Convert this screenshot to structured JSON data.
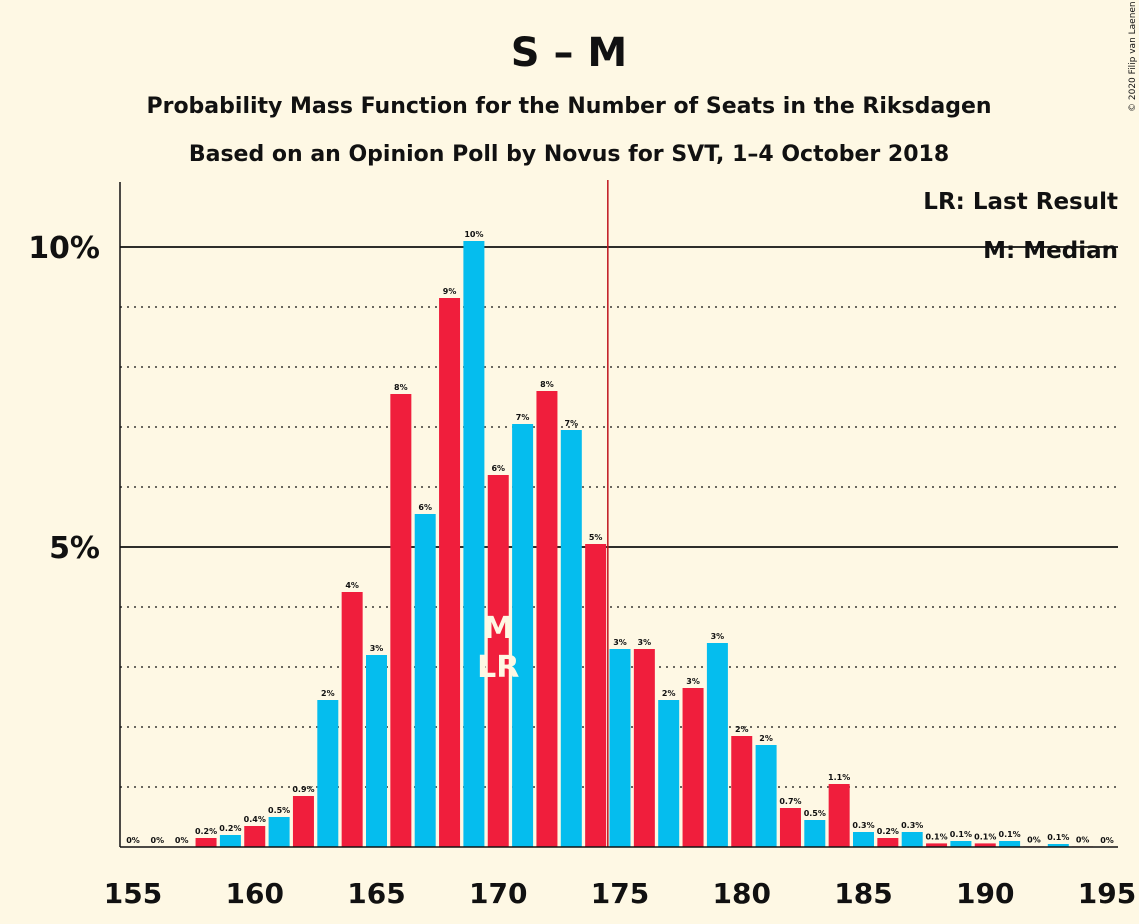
{
  "chart_data": {
    "type": "bar",
    "title": "S – M",
    "subtitle": "Probability Mass Function for the Number of Seats in the Riksdagen",
    "subtitle2": "Based on an Opinion Poll by Novus for SVT, 1–4 October 2018",
    "copyright": "© 2020 Filip van Laenen",
    "legend": {
      "lr": "LR: Last Result",
      "m": "M: Median",
      "placement": "top-right"
    },
    "x": [
      155,
      156,
      157,
      158,
      159,
      160,
      161,
      162,
      163,
      164,
      165,
      166,
      167,
      168,
      169,
      170,
      171,
      172,
      173,
      174,
      175,
      176,
      177,
      178,
      179,
      180,
      181,
      182,
      183,
      184,
      185,
      186,
      187,
      188,
      189,
      190,
      191,
      192,
      193,
      194,
      195
    ],
    "values": [
      0,
      0,
      0,
      0.15,
      0.2,
      0.35,
      0.5,
      0.85,
      2.45,
      4.25,
      3.2,
      7.55,
      5.55,
      9.15,
      10.1,
      6.2,
      7.05,
      7.6,
      6.95,
      5.05,
      3.3,
      3.3,
      2.45,
      2.65,
      3.4,
      1.85,
      1.7,
      0.65,
      0.45,
      1.05,
      0.25,
      0.15,
      0.25,
      0.06,
      0.1,
      0.06,
      0.1,
      0.01,
      0.05,
      0.01,
      0
    ],
    "labels": [
      "0%",
      "0%",
      "0%",
      "0.2%",
      "0.2%",
      "0.4%",
      "0.5%",
      "0.9%",
      "2%",
      "4%",
      "3%",
      "8%",
      "6%",
      "9%",
      "10%",
      "6%",
      "7%",
      "8%",
      "7%",
      "5%",
      "3%",
      "3%",
      "2%",
      "3%",
      "3%",
      "2%",
      "2%",
      "0.7%",
      "0.5%",
      "1.1%",
      "0.3%",
      "0.2%",
      "0.3%",
      "0.1%",
      "0.1%",
      "0.1%",
      "0.1%",
      "0%",
      "0.1%",
      "0%",
      "0%"
    ],
    "median": 170,
    "last_result": 170,
    "majority_line": 174.5,
    "xlim": [
      155,
      195
    ],
    "ylim": [
      0,
      11
    ],
    "xticks": [
      "155",
      "160",
      "165",
      "170",
      "175",
      "180",
      "185",
      "190",
      "195"
    ],
    "yticks": [
      {
        "value": 5,
        "label": "5%"
      },
      {
        "value": 10,
        "label": "10%"
      }
    ],
    "grid": "dotted at every 1%, solid at 5% and 10%",
    "marker_m": "M",
    "marker_lr": "LR",
    "colors": {
      "red": "#F01E3C",
      "blue": "#05BDEE",
      "background": "#FEF8E4",
      "majority": "#C0141E"
    }
  }
}
